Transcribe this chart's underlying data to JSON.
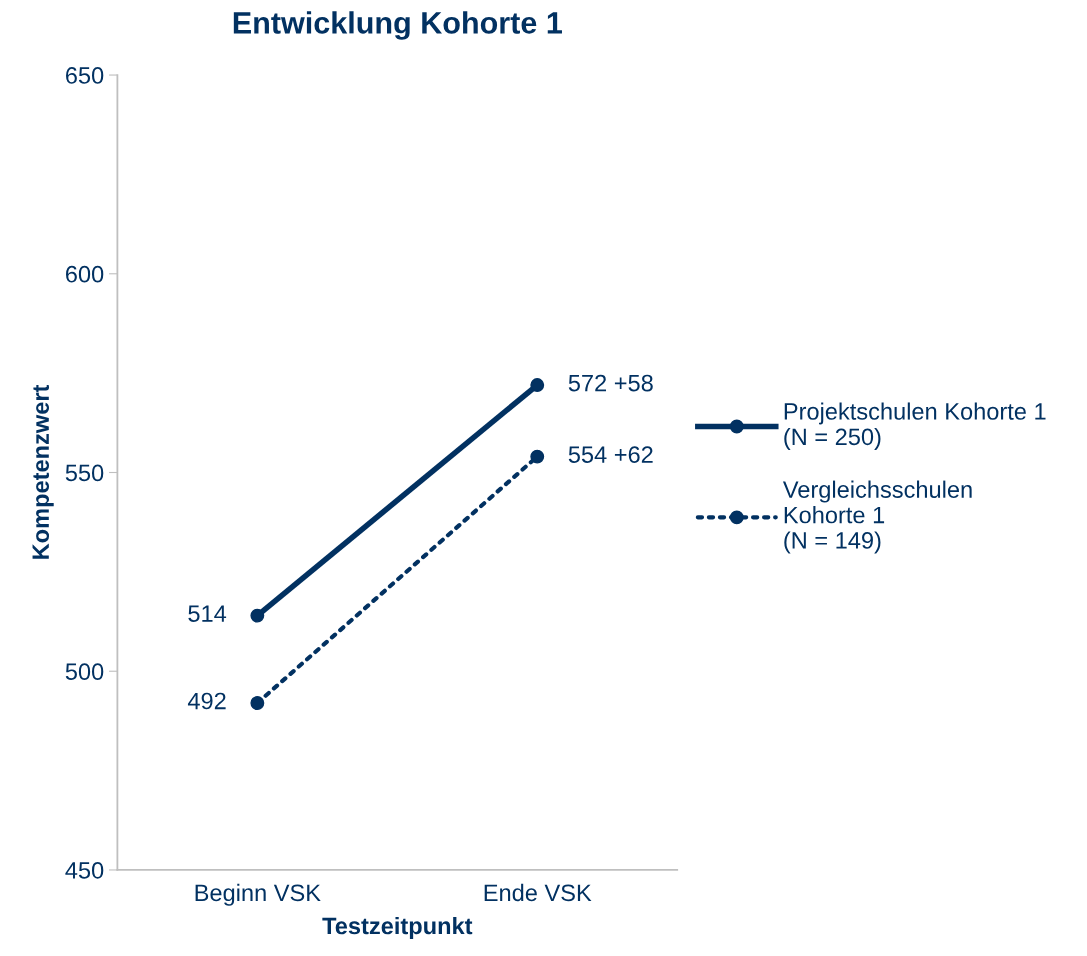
{
  "chart_data": {
    "type": "line",
    "title": "Entwicklung Kohorte 1",
    "xlabel": "Testzeitpunkt",
    "ylabel": "Kompetenzwert",
    "categories": [
      "Beginn VSK",
      "Ende VSK"
    ],
    "series": [
      {
        "name": "Projektschulen Kohorte 1\n(N = 250)",
        "color": "#023161",
        "values": [
          514,
          572
        ],
        "value_labels": [
          "514",
          "572 +58"
        ],
        "line_style": "solid"
      },
      {
        "name": "Vergleichsschulen\nKohorte 1\n(N = 149)",
        "color": "#023161",
        "values": [
          492,
          554
        ],
        "value_labels": [
          "492",
          "554 +62"
        ],
        "line_style": "dotted"
      }
    ],
    "ylim": [
      450,
      650
    ],
    "yticks": [
      450,
      500,
      550,
      600,
      650
    ],
    "grid": false,
    "legend": "right",
    "marker": "circle"
  }
}
